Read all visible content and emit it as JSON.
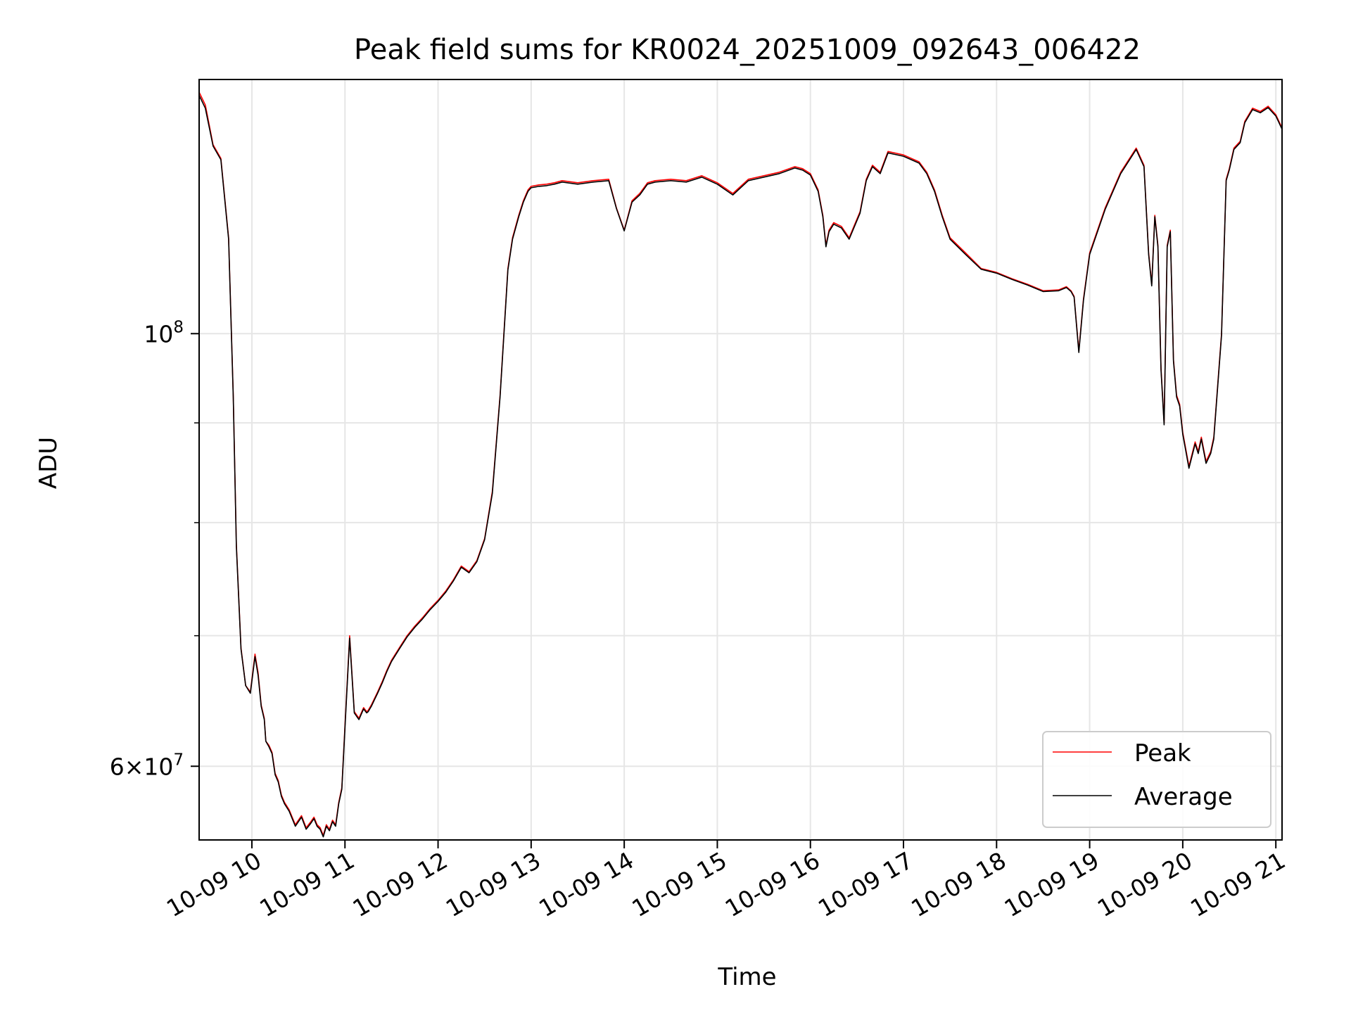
{
  "chart_data": {
    "type": "line",
    "title": "Peak field sums for KR0024_20251009_092643_006422",
    "xlabel": "Time",
    "ylabel": "ADU",
    "yscale": "log",
    "xlim": [
      "2025-10-09 09:26",
      "2025-10-09 21:04"
    ],
    "ylim": [
      55000000,
      135000000
    ],
    "grid": true,
    "legend_position": "lower-right",
    "x_ticks": [
      {
        "t": "2025-10-09 10:00",
        "label": "10-09 10"
      },
      {
        "t": "2025-10-09 11:00",
        "label": "10-09 11"
      },
      {
        "t": "2025-10-09 12:00",
        "label": "10-09 12"
      },
      {
        "t": "2025-10-09 13:00",
        "label": "10-09 13"
      },
      {
        "t": "2025-10-09 14:00",
        "label": "10-09 14"
      },
      {
        "t": "2025-10-09 15:00",
        "label": "10-09 15"
      },
      {
        "t": "2025-10-09 16:00",
        "label": "10-09 16"
      },
      {
        "t": "2025-10-09 17:00",
        "label": "10-09 17"
      },
      {
        "t": "2025-10-09 18:00",
        "label": "10-09 18"
      },
      {
        "t": "2025-10-09 19:00",
        "label": "10-09 19"
      },
      {
        "t": "2025-10-09 20:00",
        "label": "10-09 20"
      },
      {
        "t": "2025-10-09 21:00",
        "label": "10-09 21"
      }
    ],
    "y_ticks_major": [
      {
        "value": 60000000,
        "base": "6",
        "exp": "7"
      },
      {
        "value": 100000000,
        "base": "10",
        "exp": "8"
      }
    ],
    "y_ticks_minor": [
      70000000,
      80000000,
      90000000
    ],
    "x": [
      "2025-10-09 09:26",
      "2025-10-09 09:30",
      "2025-10-09 09:35",
      "2025-10-09 09:40",
      "2025-10-09 09:45",
      "2025-10-09 09:48",
      "2025-10-09 09:50",
      "2025-10-09 09:53",
      "2025-10-09 09:56",
      "2025-10-09 09:59",
      "2025-10-09 10:02",
      "2025-10-09 10:04",
      "2025-10-09 10:06",
      "2025-10-09 10:08",
      "2025-10-09 10:09",
      "2025-10-09 10:11",
      "2025-10-09 10:13",
      "2025-10-09 10:15",
      "2025-10-09 10:17",
      "2025-10-09 10:19",
      "2025-10-09 10:21",
      "2025-10-09 10:24",
      "2025-10-09 10:28",
      "2025-10-09 10:32",
      "2025-10-09 10:35",
      "2025-10-09 10:38",
      "2025-10-09 10:40",
      "2025-10-09 10:42",
      "2025-10-09 10:44",
      "2025-10-09 10:46",
      "2025-10-09 10:48",
      "2025-10-09 10:50",
      "2025-10-09 10:52",
      "2025-10-09 10:54",
      "2025-10-09 10:56",
      "2025-10-09 10:58",
      "2025-10-09 11:00",
      "2025-10-09 11:03",
      "2025-10-09 11:06",
      "2025-10-09 11:09",
      "2025-10-09 11:12",
      "2025-10-09 11:14",
      "2025-10-09 11:15",
      "2025-10-09 11:17",
      "2025-10-09 11:19",
      "2025-10-09 11:21",
      "2025-10-09 11:24",
      "2025-10-09 11:27",
      "2025-10-09 11:30",
      "2025-10-09 11:35",
      "2025-10-09 11:40",
      "2025-10-09 11:45",
      "2025-10-09 11:50",
      "2025-10-09 11:55",
      "2025-10-09 12:00",
      "2025-10-09 12:05",
      "2025-10-09 12:10",
      "2025-10-09 12:15",
      "2025-10-09 12:20",
      "2025-10-09 12:25",
      "2025-10-09 12:30",
      "2025-10-09 12:35",
      "2025-10-09 12:40",
      "2025-10-09 12:45",
      "2025-10-09 12:48",
      "2025-10-09 12:52",
      "2025-10-09 12:55",
      "2025-10-09 12:57",
      "2025-10-09 12:58",
      "2025-10-09 13:00",
      "2025-10-09 13:05",
      "2025-10-09 13:10",
      "2025-10-09 13:15",
      "2025-10-09 13:20",
      "2025-10-09 13:30",
      "2025-10-09 13:40",
      "2025-10-09 13:50",
      "2025-10-09 13:55",
      "2025-10-09 14:00",
      "2025-10-09 14:05",
      "2025-10-09 14:10",
      "2025-10-09 14:15",
      "2025-10-09 14:20",
      "2025-10-09 14:30",
      "2025-10-09 14:40",
      "2025-10-09 14:50",
      "2025-10-09 15:00",
      "2025-10-09 15:10",
      "2025-10-09 15:20",
      "2025-10-09 15:30",
      "2025-10-09 15:40",
      "2025-10-09 15:50",
      "2025-10-09 15:55",
      "2025-10-09 16:00",
      "2025-10-09 16:05",
      "2025-10-09 16:08",
      "2025-10-09 16:10",
      "2025-10-09 16:12",
      "2025-10-09 16:15",
      "2025-10-09 16:20",
      "2025-10-09 16:25",
      "2025-10-09 16:28",
      "2025-10-09 16:32",
      "2025-10-09 16:36",
      "2025-10-09 16:40",
      "2025-10-09 16:45",
      "2025-10-09 16:50",
      "2025-10-09 17:00",
      "2025-10-09 17:10",
      "2025-10-09 17:15",
      "2025-10-09 17:20",
      "2025-10-09 17:25",
      "2025-10-09 17:30",
      "2025-10-09 17:40",
      "2025-10-09 17:50",
      "2025-10-09 18:00",
      "2025-10-09 18:10",
      "2025-10-09 18:20",
      "2025-10-09 18:30",
      "2025-10-09 18:40",
      "2025-10-09 18:45",
      "2025-10-09 18:48",
      "2025-10-09 18:50",
      "2025-10-09 18:53",
      "2025-10-09 18:56",
      "2025-10-09 19:00",
      "2025-10-09 19:10",
      "2025-10-09 19:20",
      "2025-10-09 19:30",
      "2025-10-09 19:35",
      "2025-10-09 19:38",
      "2025-10-09 19:40",
      "2025-10-09 19:42",
      "2025-10-09 19:44",
      "2025-10-09 19:46",
      "2025-10-09 19:48",
      "2025-10-09 19:50",
      "2025-10-09 19:52",
      "2025-10-09 19:54",
      "2025-10-09 19:56",
      "2025-10-09 19:58",
      "2025-10-09 20:00",
      "2025-10-09 20:04",
      "2025-10-09 20:08",
      "2025-10-09 20:10",
      "2025-10-09 20:12",
      "2025-10-09 20:15",
      "2025-10-09 20:18",
      "2025-10-09 20:20",
      "2025-10-09 20:25",
      "2025-10-09 20:28",
      "2025-10-09 20:30",
      "2025-10-09 20:33",
      "2025-10-09 20:37",
      "2025-10-09 20:40",
      "2025-10-09 20:45",
      "2025-10-09 20:50",
      "2025-10-09 20:55",
      "2025-10-09 21:00",
      "2025-10-09 21:04"
    ],
    "series": [
      {
        "name": "Peak",
        "color": "#ff0000",
        "values": [
          133000000,
          131000000,
          125000000,
          123000000,
          112000000,
          93000000,
          78000000,
          69000000,
          66000000,
          65500000,
          68500000,
          67000000,
          64500000,
          63500000,
          61800000,
          61500000,
          61000000,
          59500000,
          59000000,
          58000000,
          57500000,
          57000000,
          56000000,
          56600000,
          55800000,
          56200000,
          56500000,
          56000000,
          55800000,
          55300000,
          56000000,
          55700000,
          56300000,
          56000000,
          57500000,
          58500000,
          63000000,
          70000000,
          64000000,
          63500000,
          64300000,
          64000000,
          64100000,
          64500000,
          65000000,
          65500000,
          66300000,
          67200000,
          68000000,
          69000000,
          70000000,
          70800000,
          71500000,
          72300000,
          73000000,
          73800000,
          74800000,
          76000000,
          75500000,
          76500000,
          78500000,
          83000000,
          93000000,
          108000000,
          112000000,
          115000000,
          117000000,
          118000000,
          118500000,
          119000000,
          119200000,
          119300000,
          119500000,
          119800000,
          119500000,
          119800000,
          120000000,
          116000000,
          113000000,
          117000000,
          118000000,
          119500000,
          119800000,
          120000000,
          119800000,
          120500000,
          119500000,
          118000000,
          120000000,
          120500000,
          121000000,
          121800000,
          121500000,
          120800000,
          118500000,
          115000000,
          111000000,
          113000000,
          114000000,
          113500000,
          112000000,
          113500000,
          115500000,
          120000000,
          122000000,
          121000000,
          124000000,
          123500000,
          122500000,
          121000000,
          118500000,
          115000000,
          112000000,
          110000000,
          108000000,
          107500000,
          106700000,
          106000000,
          105200000,
          105300000,
          105700000,
          105200000,
          104500000,
          98000000,
          104200000,
          110000000,
          116000000,
          121000000,
          124500000,
          122000000,
          110000000,
          106000000,
          115000000,
          111000000,
          96000000,
          90000000,
          111000000,
          113000000,
          97000000,
          93000000,
          92000000,
          89000000,
          85500000,
          88000000,
          87000000,
          88500000,
          86000000,
          87000000,
          88500000,
          100000000,
          120000000,
          121500000,
          124500000,
          125500000,
          128500000,
          130500000,
          130000000,
          130800000,
          129500000,
          127500000
        ]
      },
      {
        "name": "Average",
        "color": "#000000",
        "values": [
          132500000,
          130500000,
          124800000,
          122800000,
          111800000,
          92800000,
          77800000,
          68900000,
          66000000,
          65400000,
          68300000,
          66800000,
          64400000,
          63400000,
          61800000,
          61400000,
          60900000,
          59400000,
          58900000,
          57900000,
          57400000,
          56900000,
          55900000,
          56500000,
          55700000,
          56100000,
          56400000,
          55900000,
          55700000,
          55200000,
          55900000,
          55600000,
          56200000,
          55900000,
          57400000,
          58400000,
          62800000,
          69800000,
          63900000,
          63400000,
          64200000,
          63900000,
          64000000,
          64400000,
          64900000,
          65400000,
          66200000,
          67100000,
          67900000,
          68900000,
          69900000,
          70700000,
          71400000,
          72200000,
          72900000,
          73700000,
          74700000,
          75900000,
          75400000,
          76400000,
          78400000,
          82800000,
          92800000,
          107800000,
          111800000,
          114800000,
          116800000,
          117800000,
          118300000,
          118800000,
          119000000,
          119100000,
          119300000,
          119600000,
          119300000,
          119600000,
          119800000,
          115900000,
          112900000,
          116800000,
          117800000,
          119300000,
          119600000,
          119800000,
          119600000,
          120300000,
          119300000,
          117800000,
          119800000,
          120300000,
          120800000,
          121600000,
          121300000,
          120600000,
          118300000,
          114800000,
          110800000,
          112800000,
          113800000,
          113300000,
          111800000,
          113300000,
          115300000,
          119800000,
          121800000,
          120800000,
          123800000,
          123300000,
          122300000,
          120800000,
          118300000,
          114800000,
          111800000,
          109800000,
          107900000,
          107400000,
          106600000,
          105900000,
          105100000,
          105200000,
          105600000,
          105100000,
          104400000,
          97800000,
          104000000,
          109800000,
          115800000,
          120800000,
          124300000,
          121800000,
          109800000,
          105800000,
          114800000,
          110800000,
          95800000,
          89800000,
          110800000,
          112800000,
          96800000,
          92800000,
          91800000,
          88800000,
          85300000,
          87800000,
          86800000,
          88300000,
          85800000,
          86800000,
          88300000,
          99800000,
          119800000,
          121300000,
          124300000,
          125300000,
          128300000,
          130300000,
          129800000,
          130600000,
          129300000,
          127300000
        ]
      }
    ]
  }
}
